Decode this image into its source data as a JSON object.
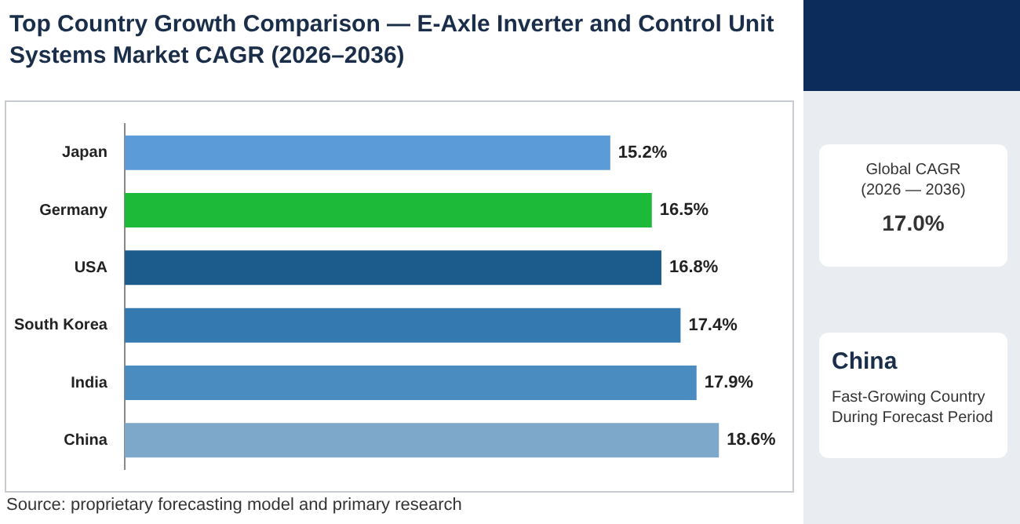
{
  "chart_data": {
    "type": "bar",
    "orientation": "horizontal",
    "title": "Top Country Growth Comparison — E-Axle Inverter and Control Unit Systems Market CAGR (2026–2036)",
    "categories": [
      "Japan",
      "Germany",
      "USA",
      "South Korea",
      "India",
      "China"
    ],
    "values": [
      15.2,
      16.5,
      16.8,
      17.4,
      17.9,
      18.6
    ],
    "colors": [
      "#5b9bd8",
      "#1dba3a",
      "#1c5c8c",
      "#3479b0",
      "#4a8cc0",
      "#7ea8c9"
    ],
    "value_labels": [
      "15.2%",
      "16.5%",
      "16.8%",
      "17.4%",
      "17.9%",
      "18.6%"
    ],
    "legend": false,
    "annotations": [
      "Global CAGR\n(2026 — 2036)",
      "17.0%",
      "China",
      "Fast-Growing Country\nDuring Forecast Period",
      "Source: proprietary forecasting model and primary research"
    ]
  }
}
